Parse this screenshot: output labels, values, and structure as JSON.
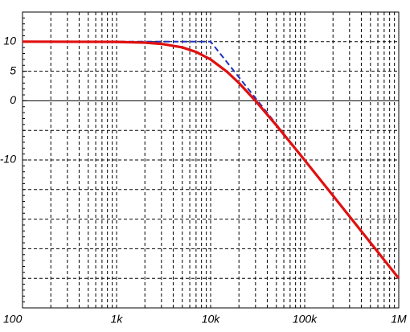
{
  "chart_data": {
    "type": "line",
    "xscale": "log",
    "xlim": [
      100,
      1000000
    ],
    "xticks": [
      100,
      {
        "value": 1000,
        "label": "1k"
      },
      {
        "value": 10000,
        "label": "10k"
      },
      {
        "value": 100000,
        "label": "100k"
      },
      {
        "value": 1000000,
        "label": "1M"
      }
    ],
    "xgrid_minor": true,
    "ylim": [
      -35,
      15
    ],
    "yticks": [
      10,
      5,
      0,
      -10
    ],
    "ygrid": [
      15,
      10,
      5,
      -5,
      -10,
      -15,
      -20,
      -25,
      -30
    ],
    "zero_line": true,
    "series": [
      {
        "color": "#1f2fbf",
        "dash": true,
        "x": [
          100,
          10000,
          1000000
        ],
        "values": [
          10,
          10,
          -30
        ]
      },
      {
        "color": "#e01010",
        "dash": false,
        "x": [
          100,
          1000,
          2000,
          3000,
          5000,
          7000,
          10000,
          15000,
          20000,
          30000,
          50000,
          100000,
          200000,
          500000,
          1000000
        ],
        "values": [
          10,
          9.96,
          9.83,
          9.62,
          9.03,
          8.26,
          6.99,
          4.89,
          3.01,
          0.0,
          -4.15,
          -10.04,
          -16.03,
          -23.98,
          -30.0
        ]
      }
    ]
  }
}
